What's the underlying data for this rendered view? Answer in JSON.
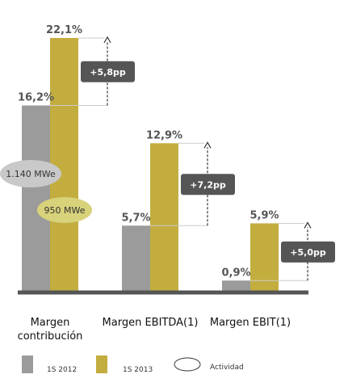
{
  "chart_data": {
    "type": "bar",
    "categories": [
      "Margen contribución",
      "Margen EBITDA(1)",
      "Margen EBIT(1)"
    ],
    "category_lines": [
      [
        "Margen",
        "contribución"
      ],
      [
        "Margen EBITDA(1)"
      ],
      [
        "Margen EBIT(1)"
      ]
    ],
    "series": [
      {
        "name": "1S 2012",
        "values": [
          16.2,
          5.7,
          0.9
        ],
        "labels": [
          "16,2%",
          "5,7%",
          "0,9%"
        ],
        "color": "#9b9b9b"
      },
      {
        "name": "1S 2013",
        "values": [
          22.1,
          12.9,
          5.9
        ],
        "labels": [
          "22,1%",
          "12,9%",
          "5,9%"
        ],
        "color": "#c3ad3f"
      }
    ],
    "deltas": [
      "+5,8pp",
      "+7,2pp",
      "+5,0pp"
    ],
    "ylim": [
      0,
      22.1
    ],
    "annotations": {
      "actividad_2012": "1.140 MWe",
      "actividad_2013": "950 MWe"
    },
    "legend": {
      "placement": "bottom",
      "actividad_label": "Actividad"
    },
    "colors": {
      "axis": "#555555",
      "delta_box": "#555555",
      "ellipse_2012": "#c9c9c9",
      "ellipse_2013": "#d8d27a"
    }
  }
}
